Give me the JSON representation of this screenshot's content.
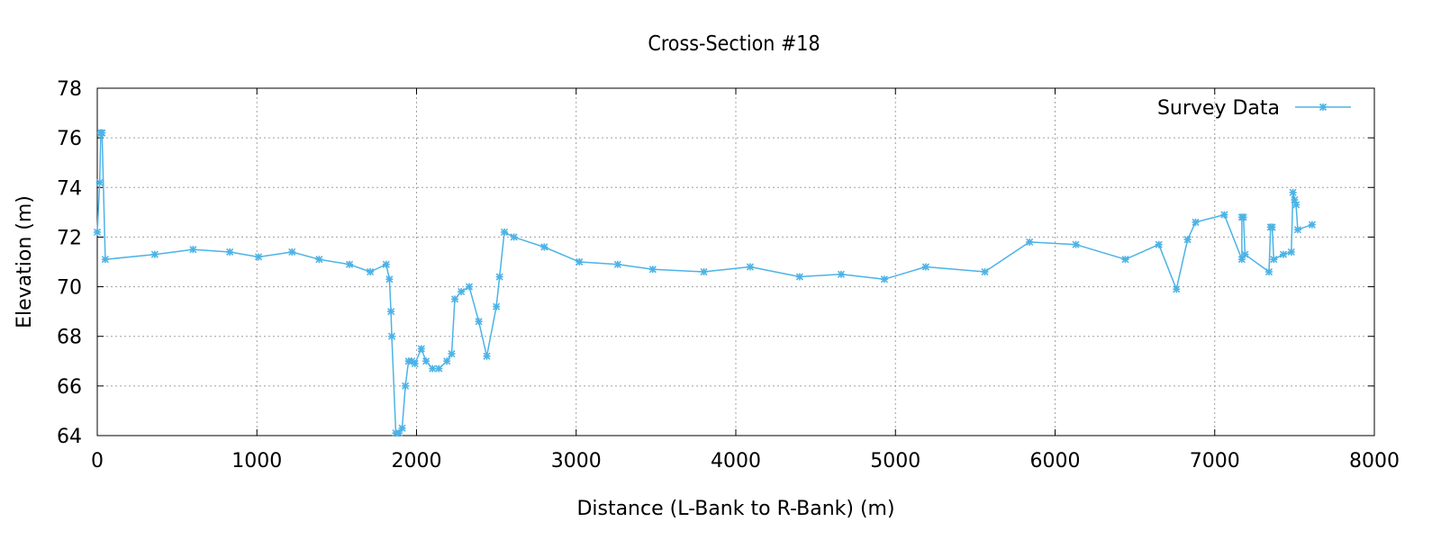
{
  "chart_data": {
    "type": "line",
    "title": "Cross-Section #18",
    "xlabel": "Distance (L-Bank to R-Bank) (m)",
    "ylabel": "Elevation (m)",
    "xlim": [
      0,
      8000
    ],
    "ylim": [
      64,
      78
    ],
    "xticks": [
      0,
      1000,
      2000,
      3000,
      4000,
      5000,
      6000,
      7000,
      8000
    ],
    "yticks": [
      64,
      66,
      68,
      70,
      72,
      74,
      76,
      78
    ],
    "grid": true,
    "legend_position": "top-right",
    "series": [
      {
        "name": "Survey Data",
        "color": "#4cb3e6",
        "marker": "asterisk",
        "x": [
          0,
          15,
          22,
          30,
          50,
          360,
          600,
          830,
          1010,
          1220,
          1390,
          1580,
          1710,
          1810,
          1830,
          1840,
          1845,
          1870,
          1890,
          1910,
          1930,
          1950,
          1970,
          1990,
          2030,
          2060,
          2100,
          2140,
          2190,
          2220,
          2240,
          2280,
          2330,
          2390,
          2440,
          2500,
          2520,
          2550,
          2610,
          2800,
          3020,
          3260,
          3480,
          3800,
          4090,
          4400,
          4660,
          4930,
          5190,
          5560,
          5840,
          6130,
          6440,
          6650,
          6760,
          6830,
          6880,
          7060,
          7170,
          7170,
          7180,
          7190,
          7340,
          7350,
          7360,
          7370,
          7430,
          7480,
          7490,
          7500,
          7510,
          7520,
          7610
        ],
        "y": [
          72.2,
          74.2,
          76.2,
          76.2,
          71.1,
          71.3,
          71.5,
          71.4,
          71.2,
          71.4,
          71.1,
          70.9,
          70.6,
          70.9,
          70.3,
          69.0,
          68.0,
          64.1,
          64.1,
          64.3,
          66.0,
          67.0,
          67.0,
          66.9,
          67.5,
          67.0,
          66.7,
          66.7,
          67.0,
          67.3,
          69.5,
          69.8,
          70.0,
          68.6,
          67.2,
          69.2,
          70.4,
          72.2,
          72.0,
          71.6,
          71.0,
          70.9,
          70.7,
          70.6,
          70.8,
          70.4,
          70.5,
          70.3,
          70.8,
          70.6,
          71.8,
          71.7,
          71.1,
          71.7,
          69.9,
          71.9,
          72.6,
          72.9,
          71.1,
          72.8,
          72.8,
          71.3,
          70.6,
          72.4,
          72.4,
          71.1,
          71.3,
          71.4,
          73.8,
          73.5,
          73.3,
          72.3,
          72.5
        ]
      }
    ]
  }
}
